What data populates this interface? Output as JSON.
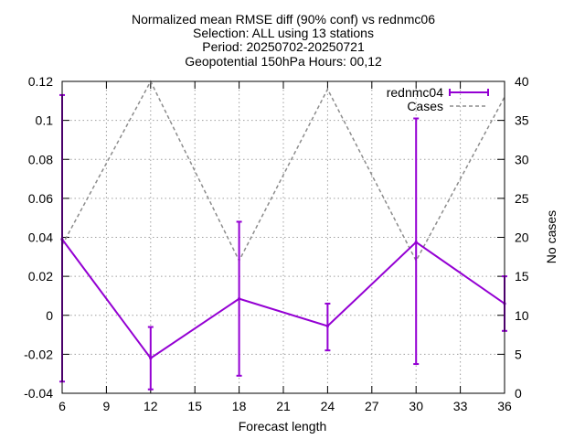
{
  "chart_data": {
    "type": "line",
    "title_lines": [
      "Normalized mean RMSE diff (90% conf) vs rednmc06",
      "Selection: ALL using    13 stations",
      "Period: 20250702-20250721",
      "Geopotential 150hPa   Hours: 00,12"
    ],
    "xlabel": "Forecast length",
    "ylabel": "",
    "y2label": "No cases",
    "xlim": [
      6,
      36
    ],
    "xticks": [
      6,
      9,
      12,
      15,
      18,
      21,
      24,
      27,
      30,
      33,
      36
    ],
    "ylim": [
      -0.04,
      0.12
    ],
    "yticks": [
      -0.04,
      -0.02,
      0,
      0.02,
      0.04,
      0.06,
      0.08,
      0.1,
      0.12
    ],
    "ytick_labels": [
      "-0.04",
      "-0.02",
      "0",
      "0.02",
      "0.04",
      "0.06",
      "0.08",
      "0.1",
      "0.12"
    ],
    "y2lim": [
      0,
      40
    ],
    "y2ticks": [
      0,
      5,
      10,
      15,
      20,
      25,
      30,
      35,
      40
    ],
    "grid": true,
    "legend_position": "top-right",
    "series": [
      {
        "name": "rednmc04",
        "axis": "y1",
        "style": "solid-errorbars",
        "color": "#9400d3",
        "x": [
          6,
          12,
          18,
          24,
          30,
          36
        ],
        "y": [
          0.039,
          -0.022,
          0.0085,
          -0.0055,
          0.0375,
          0.006
        ],
        "err_low": [
          -0.034,
          -0.038,
          -0.031,
          -0.018,
          -0.025,
          -0.008
        ],
        "err_high": [
          0.113,
          -0.006,
          0.048,
          0.006,
          0.101,
          0.02
        ]
      },
      {
        "name": "Cases",
        "axis": "y2",
        "style": "dashed",
        "color": "#8c8c8c",
        "x": [
          6,
          12,
          18,
          24,
          30,
          36
        ],
        "y": [
          19,
          40,
          17,
          39,
          17,
          38
        ]
      }
    ]
  }
}
